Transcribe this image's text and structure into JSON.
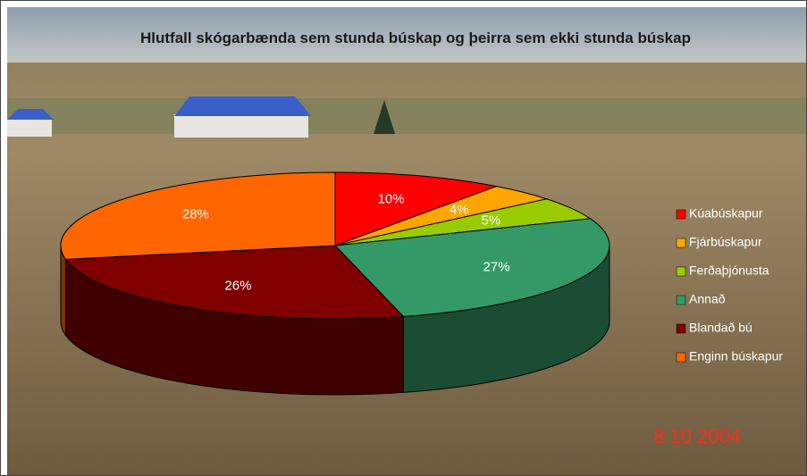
{
  "chart_data": {
    "type": "pie3d",
    "title": "Hlutfall skógarbænda sem stunda búskap og þeirra sem ekki stunda búskap",
    "categories": [
      "Kúabúskapur",
      "Fjárbúskapur",
      "Ferðaþjónusta",
      "Annað",
      "Blandað bú",
      "Enginn búskapur"
    ],
    "values": [
      10,
      4,
      5,
      27,
      26,
      28
    ],
    "value_labels": [
      "10%",
      "4%",
      "5%",
      "27%",
      "26%",
      "28%"
    ],
    "colors": [
      "#ff0000",
      "#ffa500",
      "#99cc00",
      "#339966",
      "#800000",
      "#ff6600"
    ],
    "legend": "right",
    "annotation": "8 10 2004"
  }
}
